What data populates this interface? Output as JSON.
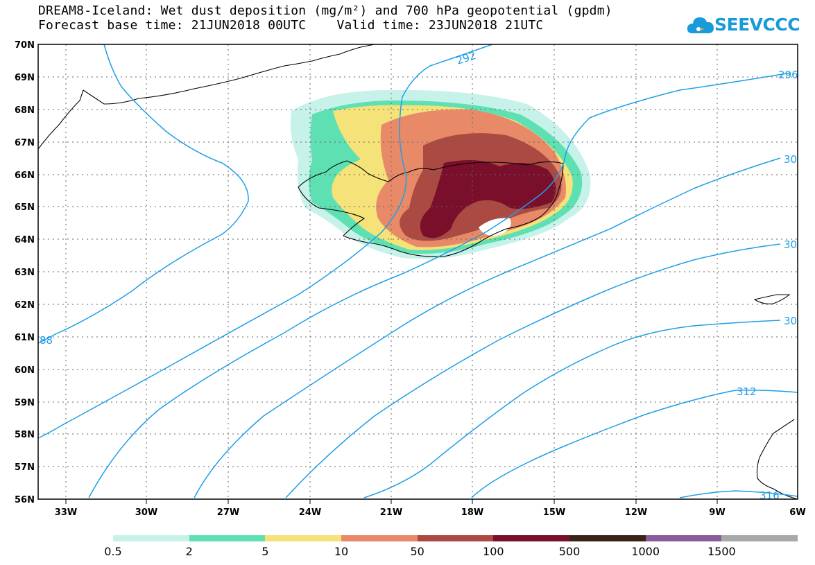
{
  "title_line1": "DREAM8-Iceland: Wet dust deposition (mg/m²) and 700 hPa geopotential (gpdm)",
  "title_line2": "Forecast base time: 21JUN2018 00UTC    Valid time: 23JUN2018 21UTC",
  "logo": {
    "text": "SEEVCCC",
    "icon": "cloud-icon"
  },
  "map": {
    "lat_labels": [
      "70N",
      "69N",
      "68N",
      "67N",
      "66N",
      "65N",
      "64N",
      "63N",
      "62N",
      "61N",
      "60N",
      "59N",
      "58N",
      "57N",
      "56N"
    ],
    "lon_labels": [
      "33W",
      "30W",
      "27W",
      "24W",
      "21W",
      "18W",
      "15W",
      "12W",
      "9W",
      "6W"
    ],
    "contour_labels": [
      "292",
      "296",
      "30",
      "30",
      "30",
      "312",
      "316",
      "88"
    ],
    "colors": {
      "contour": "#1e9ee8",
      "coast": "#000000",
      "grid": "#555555"
    }
  },
  "legend": {
    "labels": [
      "0.5",
      "2",
      "5",
      "10",
      "50",
      "100",
      "500",
      "1000",
      "1500"
    ],
    "colors": [
      "#c6f2ea",
      "#5fe0b2",
      "#f5e37a",
      "#e88a68",
      "#ab4a42",
      "#7a0f2c",
      "#3a2418",
      "#8a5c9a",
      "#a8a8a8"
    ]
  }
}
